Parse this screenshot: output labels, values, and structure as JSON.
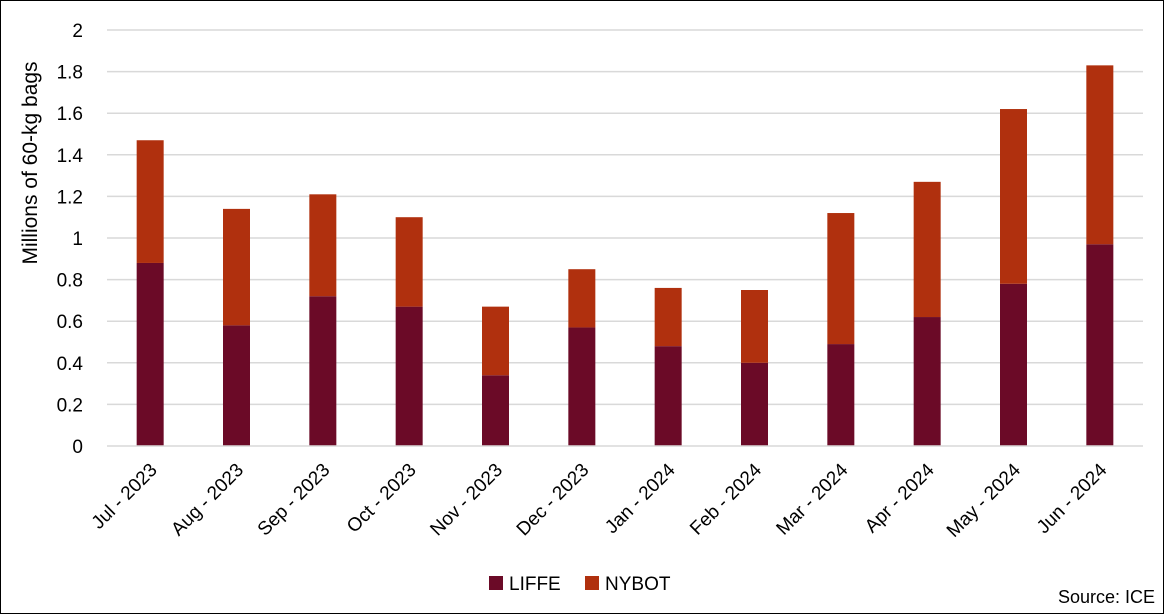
{
  "source": "Source: ICE",
  "chart_data": {
    "type": "bar",
    "stacked": true,
    "title": "",
    "xlabel": "",
    "ylabel": "Millions of 60-kg bags",
    "ylim": [
      0,
      2
    ],
    "yticks": [
      "0",
      "0.2",
      "0.4",
      "0.6",
      "0.8",
      "1",
      "1.2",
      "1.4",
      "1.6",
      "1.8",
      "2"
    ],
    "ytick_values": [
      0,
      0.2,
      0.4,
      0.6,
      0.8,
      1.0,
      1.2,
      1.4,
      1.6,
      1.8,
      2.0
    ],
    "grid": true,
    "legend_position": "bottom",
    "categories": [
      "Jul - 2023",
      "Aug - 2023",
      "Sep - 2023",
      "Oct - 2023",
      "Nov - 2023",
      "Dec - 2023",
      "Jan - 2024",
      "Feb - 2024",
      "Mar - 2024",
      "Apr - 2024",
      "May - 2024",
      "Jun - 2024"
    ],
    "series": [
      {
        "name": "LIFFE",
        "color": "#6b0a27",
        "values": [
          0.88,
          0.58,
          0.72,
          0.67,
          0.34,
          0.57,
          0.48,
          0.4,
          0.49,
          0.62,
          0.78,
          0.97
        ]
      },
      {
        "name": "NYBOT",
        "color": "#b0300e",
        "values": [
          0.59,
          0.56,
          0.49,
          0.43,
          0.33,
          0.28,
          0.28,
          0.35,
          0.63,
          0.65,
          0.84,
          0.86
        ]
      }
    ]
  }
}
